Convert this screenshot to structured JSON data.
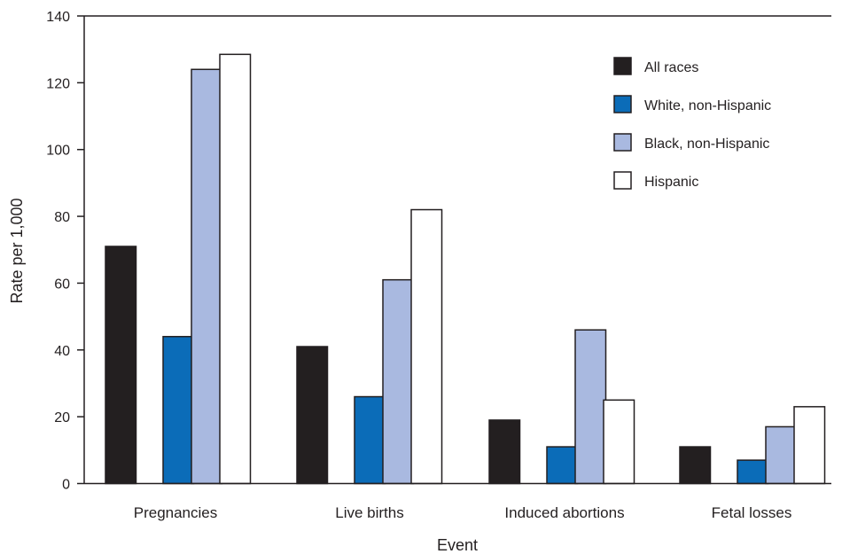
{
  "chart_data": {
    "type": "bar",
    "title": "",
    "xlabel": "Event",
    "ylabel": "Rate per 1,000",
    "ylim": [
      0,
      140
    ],
    "yticks": [
      "0",
      "20",
      "40",
      "60",
      "80",
      "100",
      "120",
      "140"
    ],
    "categories": [
      "Pregnancies",
      "Live births",
      "Induced abortions",
      "Fetal losses"
    ],
    "series": [
      {
        "name": "All races",
        "values": [
          71,
          41,
          19,
          11
        ],
        "color": "#231f20"
      },
      {
        "name": "White, non-Hispanic",
        "values": [
          44,
          26,
          11,
          7
        ],
        "color": "#0b6cb8"
      },
      {
        "name": "Black, non-Hispanic",
        "values": [
          124,
          61,
          46,
          17
        ],
        "color": "#a9b9e0"
      },
      {
        "name": "Hispanic",
        "values": [
          128.5,
          82,
          25,
          23
        ],
        "color": "#ffffff"
      }
    ],
    "grid": false,
    "legend_position": "top-right"
  }
}
